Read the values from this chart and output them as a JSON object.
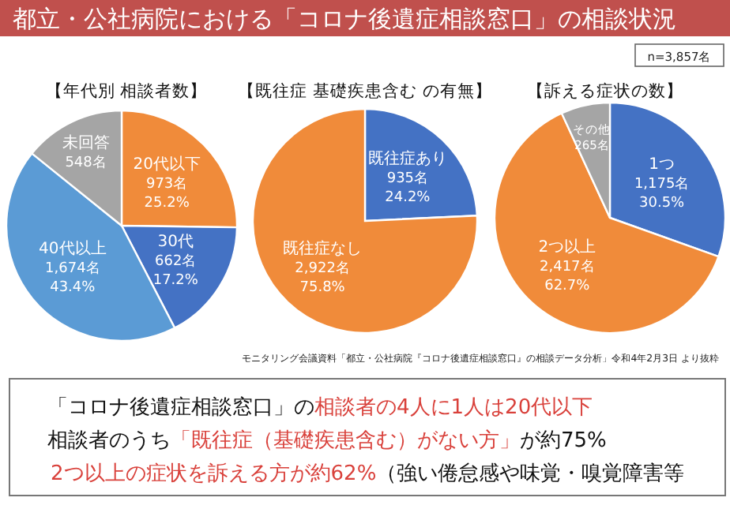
{
  "chart_data": [
    {
      "type": "other",
      "title": "都立・公社病院における「コロナ後遺症相談窓口」の相談状況",
      "annotations": [
        "n=3,857名"
      ]
    },
    {
      "type": "pie",
      "title": "【年代別 相談者数】",
      "categories": [
        "20代以下",
        "30代",
        "40代以上",
        "未回答"
      ],
      "values": [
        973,
        662,
        1674,
        548
      ],
      "colors": [
        "#f08b3a",
        "#4472c4",
        "#5b9bd5",
        "#a5a5a5"
      ],
      "value_labels": [
        "973名\n25.2%",
        "662名\n17.2%",
        "1,674名\n43.4%",
        "548名"
      ]
    },
    {
      "type": "pie",
      "title": "【既往症 基礎疾患含む の有無】",
      "categories": [
        "既往症あり",
        "既往症なし"
      ],
      "values": [
        935,
        2922
      ],
      "colors": [
        "#4472c4",
        "#f08b3a"
      ],
      "value_labels": [
        "935名\n24.2%",
        "2,922名\n75.8%"
      ]
    },
    {
      "type": "pie",
      "title": "【訴える症状の数】",
      "categories": [
        "1つ",
        "2つ以上",
        "その他"
      ],
      "values": [
        1175,
        2417,
        265
      ],
      "colors": [
        "#4472c4",
        "#f08b3a",
        "#a5a5a5"
      ],
      "value_labels": [
        "1,175名\n30.5%",
        "2,417名\n62.7%",
        "265名"
      ]
    },
    {
      "type": "other",
      "annotations": [
        "モニタリング会議資料「都立・公社病院『コロナ後遺症相談窓口』の相談データ分析」令和4年2月3日 より抜粋",
        "「コロナ後遺症相談窓口」の",
        "相談者の4人に1人は20代以下",
        "相談者のうち",
        "「既往症（基礎疾患含む）がない方」",
        "が約75%",
        "2つ以上の症状を訴える方が約62%",
        "（強い倦怠感や味覚・嗅覚障害等"
      ]
    }
  ]
}
